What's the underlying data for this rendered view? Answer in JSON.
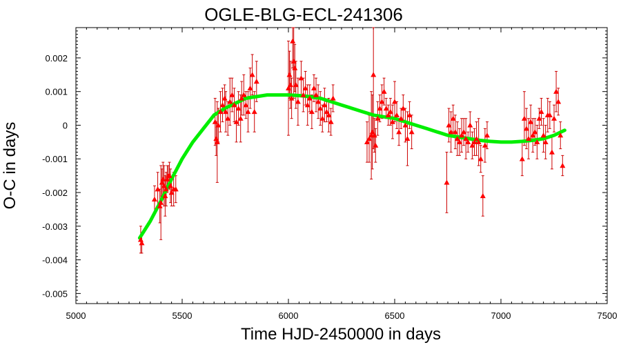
{
  "chart_data": {
    "type": "scatter",
    "title": "OGLE-BLG-ECL-241306",
    "xlabel": "Time HJD-2450000 in days",
    "ylabel": "O-C in days",
    "xlim": [
      5000,
      7500
    ],
    "ylim": [
      -0.0053,
      0.0029
    ],
    "xticks": [
      5000,
      5500,
      6000,
      6500,
      7000,
      7500
    ],
    "xtick_labels": [
      "5000",
      "5500",
      "6000",
      "6500",
      "7000",
      "7500"
    ],
    "yticks": [
      -0.005,
      -0.004,
      -0.003,
      -0.002,
      -0.001,
      0,
      0.001,
      0.002
    ],
    "ytick_labels": [
      "-0.005",
      "-0.004",
      "-0.003",
      "-0.002",
      "-0.001",
      "0",
      "0.001",
      "0.002"
    ],
    "grid": false,
    "colors": {
      "points": "#ff0000",
      "errorbars": "#cc0000",
      "fit": "#00ee00"
    },
    "series": [
      {
        "kind": "points_with_errors",
        "marker": "triangle",
        "x": [
          5305,
          5310,
          5370,
          5385,
          5395,
          5400,
          5405,
          5410,
          5415,
          5420,
          5425,
          5430,
          5435,
          5440,
          5445,
          5450,
          5460,
          5470,
          5655,
          5660,
          5665,
          5670,
          5680,
          5690,
          5700,
          5705,
          5715,
          5725,
          5735,
          5745,
          5755,
          5765,
          5775,
          5780,
          5790,
          5800,
          5810,
          5820,
          5830,
          5840,
          5850,
          6000,
          6005,
          6010,
          6015,
          6020,
          6025,
          6030,
          6035,
          6045,
          6060,
          6070,
          6080,
          6090,
          6100,
          6110,
          6120,
          6130,
          6140,
          6150,
          6160,
          6170,
          6180,
          6190,
          6200,
          6210,
          6370,
          6380,
          6390,
          6395,
          6400,
          6405,
          6410,
          6420,
          6430,
          6440,
          6450,
          6460,
          6470,
          6480,
          6490,
          6500,
          6510,
          6520,
          6530,
          6540,
          6550,
          6560,
          6570,
          6580,
          6745,
          6755,
          6765,
          6775,
          6785,
          6795,
          6805,
          6815,
          6825,
          6835,
          6845,
          6855,
          6865,
          6875,
          6885,
          6895,
          6905,
          6915,
          6925,
          6935,
          7100,
          7110,
          7120,
          7130,
          7140,
          7150,
          7160,
          7170,
          7180,
          7190,
          7200,
          7210,
          7220,
          7230,
          7240,
          7250,
          7260,
          7270,
          7280,
          7290
        ],
        "y": [
          -0.0034,
          -0.0035,
          -0.0022,
          -0.0019,
          -0.0024,
          -0.0023,
          -0.0017,
          -0.0016,
          -0.0018,
          -0.0021,
          -0.0019,
          -0.0016,
          -0.0015,
          -0.0015,
          -0.0018,
          -0.002,
          -0.0019,
          -0.0019,
          0.0001,
          -0.0004,
          -0.0005,
          0.0,
          0.0004,
          0.0006,
          0.0008,
          0.0004,
          0.0002,
          0.0007,
          0.0009,
          0.0006,
          0.0001,
          0.0005,
          0.0002,
          0.0008,
          0.0009,
          0.0006,
          0.0004,
          0.0011,
          0.0015,
          0.0004,
          0.0013,
          0.0011,
          0.0015,
          0.0012,
          0.0008,
          0.0025,
          0.0019,
          0.0017,
          0.0012,
          0.0007,
          0.0014,
          0.0009,
          0.0011,
          0.0006,
          0.0008,
          0.0004,
          0.0011,
          0.0009,
          0.0007,
          0.0005,
          0.0002,
          0.0006,
          0.0004,
          0.0003,
          0.0001,
          0.0008,
          -0.0005,
          -0.0004,
          -0.0003,
          -0.0002,
          0.0015,
          -0.0003,
          -0.0006,
          0.0002,
          0.0005,
          0.0007,
          0.001,
          0.0005,
          0.0003,
          0.0004,
          0.0001,
          0.0007,
          0.0003,
          -0.0002,
          0.0002,
          0.0005,
          0.0,
          -0.0004,
          0.0003,
          -0.0002,
          -0.0017,
          0.0,
          -0.0002,
          0.0002,
          -0.0002,
          -0.0004,
          -0.0005,
          -0.0003,
          -0.0002,
          -0.0004,
          -0.0005,
          0.0,
          -0.0006,
          -0.0005,
          -0.0004,
          -0.0005,
          -0.001,
          -0.0021,
          -0.0006,
          -0.0003,
          -0.001,
          0.0002,
          -0.0001,
          -0.0004,
          0.0001,
          -0.0003,
          -0.0002,
          -0.0005,
          0.0002,
          0.0004,
          -0.0003,
          -0.0005,
          0.0003,
          0.0003,
          -0.0008,
          0.0002,
          0.001,
          0.0007,
          -0.0003,
          -0.0012
        ],
        "err": [
          0.0004,
          0.0003,
          0.0004,
          0.0005,
          0.0005,
          0.0011,
          0.0004,
          0.0005,
          0.0006,
          0.0006,
          0.0005,
          0.0004,
          0.0003,
          0.0004,
          0.0005,
          0.0004,
          0.0005,
          0.0004,
          0.0007,
          0.0005,
          0.0012,
          0.0005,
          0.0006,
          0.0005,
          0.0004,
          0.0006,
          0.0005,
          0.0007,
          0.0005,
          0.0005,
          0.0006,
          0.0005,
          0.0007,
          0.0005,
          0.0006,
          0.0004,
          0.0006,
          0.0006,
          0.0006,
          0.0006,
          0.0006,
          0.0014,
          0.0007,
          0.0007,
          0.0006,
          0.0008,
          0.0011,
          0.0007,
          0.0007,
          0.0007,
          0.0005,
          0.0005,
          0.0005,
          0.0006,
          0.0004,
          0.0005,
          0.0004,
          0.0005,
          0.0005,
          0.0005,
          0.0004,
          0.0005,
          0.0003,
          0.0005,
          0.0004,
          0.0004,
          0.0006,
          0.0007,
          0.0013,
          0.0011,
          0.0022,
          0.0005,
          0.0005,
          0.0005,
          0.0004,
          0.0005,
          0.0004,
          0.0003,
          0.0003,
          0.0004,
          0.0005,
          0.0006,
          0.0004,
          0.0004,
          0.0003,
          0.0004,
          0.0005,
          0.0008,
          0.0004,
          0.0005,
          0.0009,
          0.0005,
          0.0006,
          0.0004,
          0.0005,
          0.0005,
          0.0004,
          0.0005,
          0.0004,
          0.0006,
          0.0003,
          0.0004,
          0.0004,
          0.0004,
          0.0005,
          0.0007,
          0.0004,
          0.0006,
          0.0005,
          0.0004,
          0.0005,
          0.0008,
          0.0006,
          0.0006,
          0.0005,
          0.0005,
          0.0004,
          0.0005,
          0.0003,
          0.0004,
          0.0005,
          0.0005,
          0.0005,
          0.0004,
          0.0005,
          0.0004,
          0.0006,
          0.0004,
          0.0004,
          0.0003
        ]
      },
      {
        "kind": "fit_curve",
        "x": [
          5300,
          5350,
          5400,
          5450,
          5500,
          5550,
          5600,
          5650,
          5700,
          5750,
          5800,
          5850,
          5900,
          5950,
          6000,
          6050,
          6100,
          6150,
          6200,
          6250,
          6300,
          6350,
          6400,
          6450,
          6500,
          6550,
          6600,
          6650,
          6700,
          6750,
          6800,
          6850,
          6900,
          6950,
          7000,
          7050,
          7100,
          7150,
          7200,
          7250,
          7300
        ],
        "y": [
          -0.00335,
          -0.00285,
          -0.00225,
          -0.0016,
          -0.001,
          -0.0005,
          -0.0001,
          0.0003,
          0.0005,
          0.00065,
          0.0008,
          0.00085,
          0.0009,
          0.0009,
          0.0009,
          0.00088,
          0.00085,
          0.0008,
          0.0007,
          0.0006,
          0.0005,
          0.0004,
          0.0003,
          0.00025,
          0.0002,
          0.0001,
          0.0,
          -0.0001,
          -0.0002,
          -0.0003,
          -0.00035,
          -0.0004,
          -0.00045,
          -0.00048,
          -0.0005,
          -0.0005,
          -0.00048,
          -0.00045,
          -0.0004,
          -0.0003,
          -0.00015
        ]
      }
    ]
  }
}
